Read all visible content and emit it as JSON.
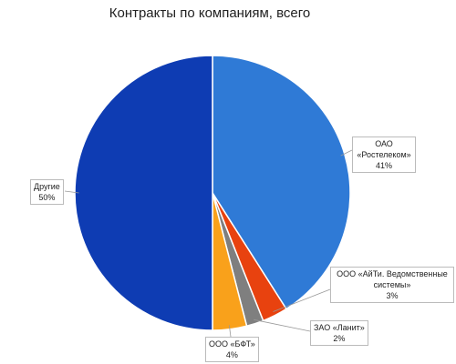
{
  "chart_data": {
    "type": "pie",
    "title": "Контракты по компаниям, всего",
    "categories": [
      "ОАО «Ростелеком»",
      "ООО «АйТи. Ведомственные системы»",
      "ЗАО «Ланит»",
      "ООО «БФТ»",
      "Другие"
    ],
    "values": [
      41,
      3,
      2,
      4,
      50
    ],
    "value_labels": [
      "41%",
      "3%",
      "2%",
      "4%",
      "50%"
    ],
    "colors": [
      "#2f7ad6",
      "#e8420f",
      "#7f7f7f",
      "#f9a11b",
      "#0e3cb3"
    ]
  }
}
